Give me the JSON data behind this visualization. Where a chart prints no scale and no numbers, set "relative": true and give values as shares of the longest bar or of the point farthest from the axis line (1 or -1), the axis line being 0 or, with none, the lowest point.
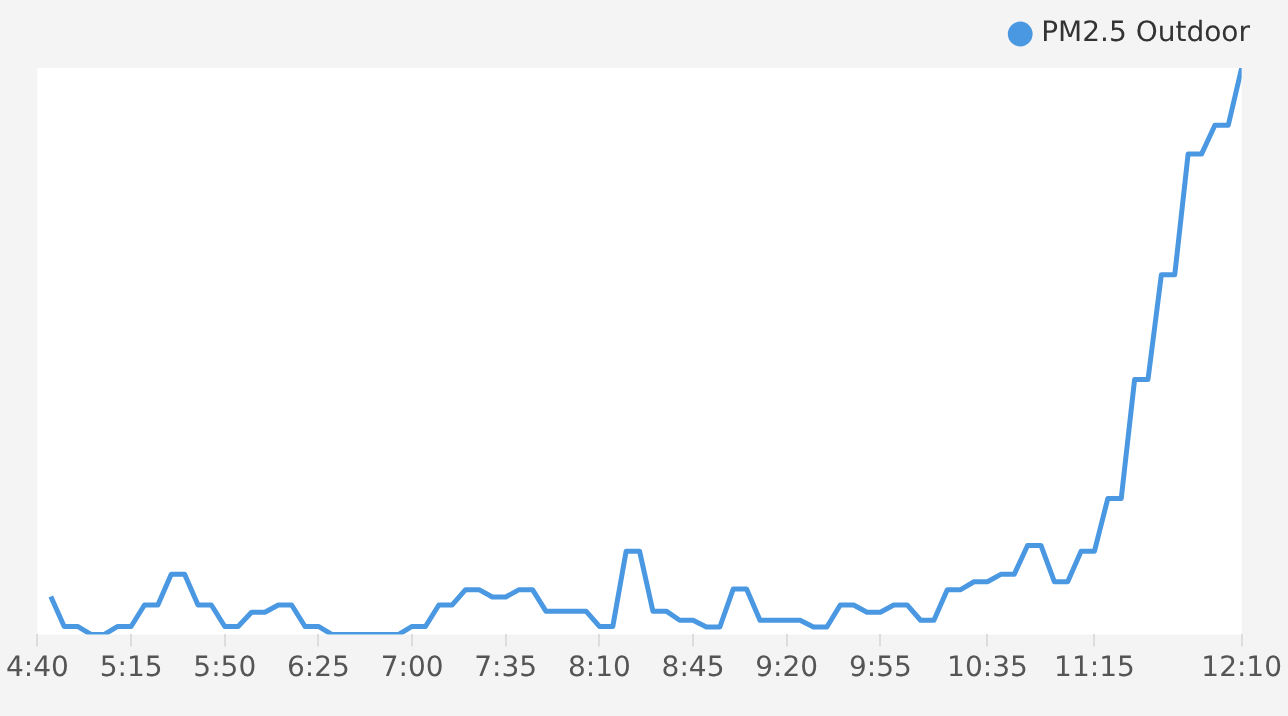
{
  "chart_data": {
    "type": "line",
    "relative": true,
    "x": [
      4.75,
      4.8333,
      4.9167,
      5,
      5.0833,
      5.1667,
      5.25,
      5.3333,
      5.4167,
      5.5,
      5.5833,
      5.6667,
      5.75,
      5.8333,
      5.9167,
      6,
      6.0833,
      6.1667,
      6.25,
      6.3333,
      6.4167,
      6.5,
      6.5833,
      6.6667,
      6.75,
      6.8333,
      6.9167,
      7,
      7.0833,
      7.1667,
      7.25,
      7.3333,
      7.4167,
      7.5,
      7.5833,
      7.6667,
      7.75,
      7.8333,
      7.9167,
      8,
      8.0833,
      8.1667,
      8.25,
      8.3333,
      8.4167,
      8.5,
      8.5833,
      8.6667,
      8.75,
      8.8333,
      8.9167,
      9,
      9.0833,
      9.1667,
      9.25,
      9.3333,
      9.4167,
      9.5,
      9.5833,
      9.6667,
      9.75,
      9.8333,
      9.9167,
      10,
      10.0833,
      10.1667,
      10.25,
      10.3333,
      10.4167,
      10.5,
      10.5833,
      10.6667,
      10.75,
      10.8333,
      10.9167,
      11,
      11.0833,
      11.1667,
      11.25,
      11.3333,
      11.4167,
      11.5,
      11.5833,
      11.6667,
      11.75,
      11.8333,
      11.9167,
      12,
      12.0833,
      12.1667
    ],
    "series": [
      {
        "name": "PM2.5 Outdoor",
        "color": "#4a98e2",
        "values": [
          0.067,
          0.014,
          0.014,
          0,
          0,
          0.014,
          0.014,
          0.052,
          0.052,
          0.106,
          0.106,
          0.052,
          0.052,
          0.014,
          0.014,
          0.039,
          0.039,
          0.052,
          0.052,
          0.014,
          0.014,
          0,
          0,
          0,
          0,
          0,
          0,
          0.014,
          0.014,
          0.052,
          0.052,
          0.079,
          0.079,
          0.066,
          0.066,
          0.079,
          0.079,
          0.041,
          0.041,
          0.041,
          0.041,
          0.014,
          0.014,
          0.147,
          0.147,
          0.041,
          0.041,
          0.025,
          0.025,
          0.013,
          0.013,
          0.08,
          0.08,
          0.025,
          0.025,
          0.025,
          0.025,
          0.013,
          0.013,
          0.052,
          0.052,
          0.039,
          0.039,
          0.052,
          0.052,
          0.025,
          0.025,
          0.079,
          0.079,
          0.093,
          0.093,
          0.106,
          0.106,
          0.157,
          0.157,
          0.093,
          0.093,
          0.147,
          0.147,
          0.24,
          0.24,
          0.45,
          0.45,
          0.635,
          0.635,
          0.848,
          0.848,
          0.899,
          0.899,
          1
        ]
      }
    ],
    "xlim": [
      4.6667,
      12.1667
    ],
    "xticks": [
      {
        "value": 4.6667,
        "label": "4:40"
      },
      {
        "value": 5.25,
        "label": "5:15"
      },
      {
        "value": 5.8333,
        "label": "5:50"
      },
      {
        "value": 6.4167,
        "label": "6:25"
      },
      {
        "value": 7,
        "label": "7:00"
      },
      {
        "value": 7.5833,
        "label": "7:35"
      },
      {
        "value": 8.1667,
        "label": "8:10"
      },
      {
        "value": 8.75,
        "label": "8:45"
      },
      {
        "value": 9.3333,
        "label": "9:20"
      },
      {
        "value": 9.9167,
        "label": "9:55"
      },
      {
        "value": 10.5833,
        "label": "10:35"
      },
      {
        "value": 11.25,
        "label": "11:15"
      },
      {
        "value": 12.1667,
        "label": "12:10"
      }
    ],
    "legend": "top right",
    "marker": "none",
    "line_style": "solid"
  }
}
